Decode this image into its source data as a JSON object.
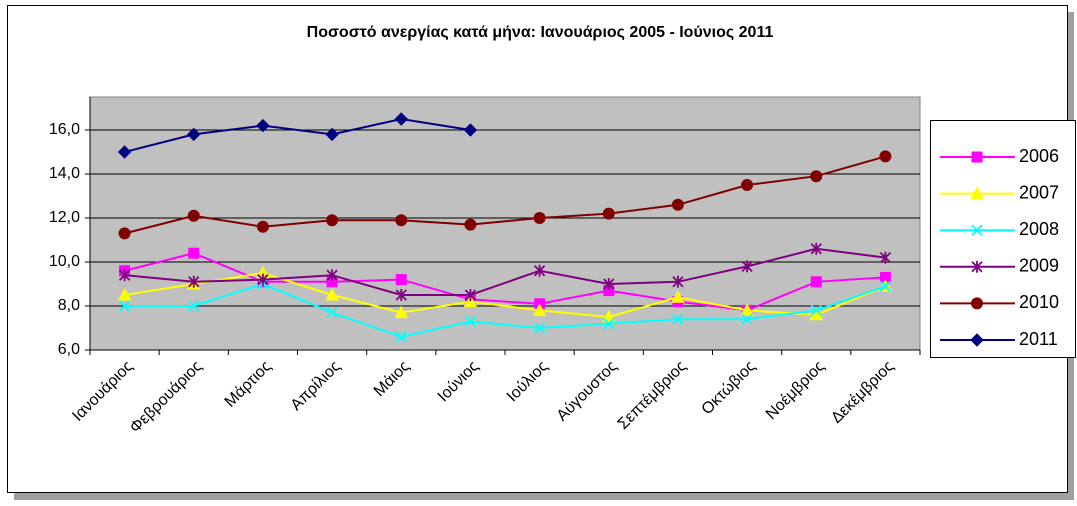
{
  "chart_data": {
    "type": "line",
    "title": "Ποσοστό ανεργίας κατά μήνα: Ιανουάριος 2005 - Ιούνιος 2011",
    "categories": [
      "Ιανουάριος",
      "Φεβρουάριος",
      "Μάρτιος",
      "Απρίλιος",
      "Μάιος",
      "Ιούνιος",
      "Ιούλιος",
      "Αύγουστος",
      "Σεπτέμβριος",
      "Οκτώβιος",
      "Νοέμβριος",
      "Δεκέμβριος"
    ],
    "ylim": [
      6,
      17.5
    ],
    "yticks": [
      {
        "value": 6,
        "label": "6,0"
      },
      {
        "value": 8,
        "label": "8,0"
      },
      {
        "value": 10,
        "label": "10,0"
      },
      {
        "value": 12,
        "label": "12,0"
      },
      {
        "value": 14,
        "label": "14,0"
      },
      {
        "value": 16,
        "label": "16,0"
      }
    ],
    "grid": true,
    "legend": "right",
    "series": [
      {
        "name": "2006",
        "color": "#ff00ff",
        "marker": "square",
        "values": [
          9.6,
          10.4,
          9.1,
          9.1,
          9.2,
          8.3,
          8.1,
          8.7,
          8.2,
          7.8,
          9.1,
          9.3
        ]
      },
      {
        "name": "2007",
        "color": "#ffff00",
        "marker": "triangle",
        "values": [
          8.5,
          9.0,
          9.5,
          8.5,
          7.7,
          8.2,
          7.8,
          7.5,
          8.4,
          7.8,
          7.6,
          8.9
        ]
      },
      {
        "name": "2008",
        "color": "#00ffff",
        "marker": "x",
        "values": [
          8.0,
          8.0,
          9.0,
          7.7,
          6.6,
          7.3,
          7.0,
          7.2,
          7.4,
          7.4,
          7.8,
          8.9
        ]
      },
      {
        "name": "2009",
        "color": "#800080",
        "marker": "star",
        "values": [
          9.4,
          9.1,
          9.2,
          9.4,
          8.5,
          8.5,
          9.6,
          9.0,
          9.1,
          9.8,
          10.6,
          10.2
        ]
      },
      {
        "name": "2010",
        "color": "#800000",
        "marker": "circle",
        "values": [
          11.3,
          12.1,
          11.6,
          11.9,
          11.9,
          11.7,
          12.0,
          12.2,
          12.6,
          13.5,
          13.9,
          14.8
        ]
      },
      {
        "name": "2011",
        "color": "#000080",
        "marker": "diamond",
        "values": [
          15.0,
          15.8,
          16.2,
          15.8,
          16.5,
          16.0,
          null,
          null,
          null,
          null,
          null,
          null
        ]
      }
    ]
  }
}
